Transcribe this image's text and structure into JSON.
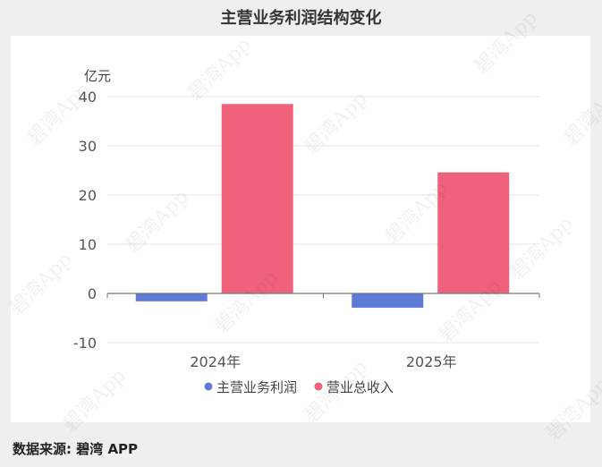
{
  "title": "主营业务利润结构变化",
  "source": "数据来源: 碧湾 APP",
  "watermark": "碧湾App",
  "chart_data": {
    "type": "bar",
    "ylabel": "亿元",
    "categories": [
      "2024年",
      "2025年"
    ],
    "series": [
      {
        "name": "主营业务利润",
        "color": "#5b7bd6",
        "values": [
          -1.6,
          -2.9
        ]
      },
      {
        "name": "营业总收入",
        "color": "#f0627c",
        "values": [
          38.5,
          24.6
        ]
      }
    ],
    "ylim": [
      -10,
      40
    ],
    "yticks": [
      -10,
      0,
      10,
      20,
      30,
      40
    ],
    "grid": true,
    "legend": "bottom"
  }
}
